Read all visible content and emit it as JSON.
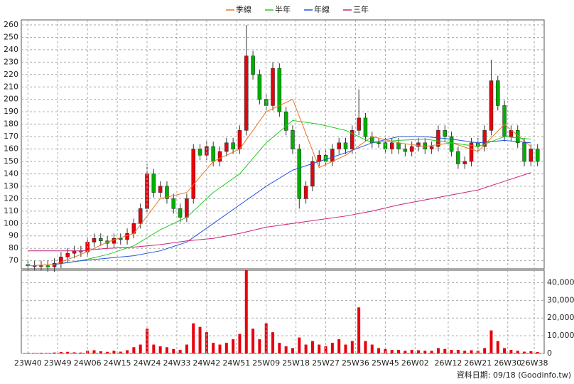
{
  "chart_data": [
    {
      "type": "candlestick",
      "x": [
        0,
        2,
        4,
        6,
        8,
        10,
        12,
        14,
        16,
        18,
        20,
        22,
        24,
        26,
        28,
        30,
        32,
        34,
        36,
        38,
        40,
        42,
        44,
        46,
        48,
        50,
        52,
        54,
        56,
        58,
        60,
        62,
        64,
        66,
        68,
        70,
        72,
        74,
        76,
        78,
        80,
        82,
        84,
        86,
        88,
        90,
        92,
        94,
        96,
        98,
        100,
        102,
        104,
        106,
        108,
        110,
        112,
        114,
        116,
        118,
        120,
        122,
        124,
        126,
        128,
        130,
        132,
        134,
        136,
        138,
        140,
        142,
        144,
        146,
        148,
        150,
        152,
        154
      ],
      "open": [
        67,
        66,
        66,
        66,
        65,
        68,
        73,
        76,
        78,
        77,
        85,
        88,
        86,
        84,
        88,
        87,
        92,
        100,
        112,
        140,
        125,
        130,
        120,
        112,
        105,
        120,
        160,
        155,
        162,
        150,
        158,
        165,
        160,
        175,
        235,
        220,
        200,
        195,
        225,
        190,
        175,
        160,
        120,
        130,
        150,
        155,
        150,
        160,
        165,
        160,
        175,
        185,
        170,
        165,
        165,
        160,
        165,
        160,
        158,
        162,
        165,
        160,
        162,
        175,
        170,
        158,
        148,
        150,
        165,
        162,
        175,
        215,
        195,
        170,
        175,
        165,
        150,
        160
      ],
      "high": [
        70,
        70,
        70,
        70,
        72,
        77,
        80,
        82,
        82,
        89,
        92,
        92,
        90,
        92,
        92,
        96,
        104,
        116,
        148,
        144,
        134,
        134,
        124,
        116,
        124,
        164,
        164,
        166,
        166,
        162,
        169,
        169,
        179,
        260,
        239,
        224,
        204,
        230,
        229,
        194,
        179,
        164,
        134,
        154,
        159,
        159,
        164,
        169,
        169,
        179,
        208,
        189,
        174,
        169,
        169,
        169,
        169,
        164,
        166,
        169,
        169,
        166,
        179,
        179,
        174,
        162,
        154,
        169,
        169,
        179,
        232,
        219,
        199,
        179,
        179,
        169,
        164,
        164
      ],
      "low": [
        62,
        62,
        62,
        61,
        61,
        64,
        69,
        72,
        73,
        73,
        81,
        82,
        80,
        80,
        83,
        83,
        88,
        96,
        108,
        121,
        121,
        116,
        108,
        101,
        101,
        116,
        151,
        151,
        146,
        146,
        154,
        156,
        156,
        171,
        216,
        196,
        191,
        191,
        186,
        171,
        156,
        112,
        116,
        126,
        146,
        146,
        146,
        156,
        156,
        156,
        171,
        166,
        161,
        161,
        156,
        156,
        156,
        154,
        154,
        158,
        156,
        156,
        158,
        166,
        154,
        144,
        144,
        146,
        158,
        158,
        171,
        191,
        166,
        166,
        161,
        146,
        146,
        146
      ],
      "close": [
        66,
        66,
        66,
        65,
        68,
        73,
        76,
        78,
        77,
        85,
        88,
        86,
        84,
        88,
        87,
        92,
        100,
        112,
        140,
        125,
        130,
        120,
        112,
        105,
        120,
        160,
        155,
        162,
        150,
        158,
        165,
        160,
        175,
        235,
        220,
        200,
        195,
        225,
        190,
        175,
        160,
        120,
        130,
        150,
        155,
        150,
        160,
        165,
        160,
        175,
        185,
        170,
        165,
        165,
        160,
        165,
        160,
        158,
        162,
        165,
        160,
        162,
        175,
        170,
        158,
        148,
        150,
        165,
        162,
        175,
        215,
        195,
        170,
        175,
        165,
        150,
        160,
        150
      ],
      "up_color": "#e8000b",
      "down_color": "#00b000",
      "series": [
        {
          "name": "季線",
          "color": "#e87722",
          "x": [
            0,
            8,
            16,
            24,
            32,
            40,
            48,
            56,
            64,
            72,
            80,
            88,
            96,
            104,
            112,
            120,
            128,
            136,
            144,
            152
          ],
          "values": [
            66,
            67,
            75,
            85,
            92,
            120,
            125,
            150,
            160,
            190,
            200,
            145,
            155,
            170,
            165,
            162,
            165,
            158,
            180,
            162
          ]
        },
        {
          "name": "半年",
          "color": "#22cc22",
          "x": [
            0,
            8,
            16,
            24,
            32,
            40,
            48,
            56,
            64,
            72,
            80,
            88,
            96,
            104,
            112,
            120,
            128,
            136,
            144,
            152
          ],
          "values": [
            null,
            67,
            70,
            75,
            82,
            95,
            105,
            125,
            140,
            165,
            183,
            180,
            175,
            165,
            167,
            168,
            165,
            162,
            170,
            168
          ]
        },
        {
          "name": "年線",
          "color": "#2255dd",
          "x": [
            0,
            8,
            16,
            24,
            32,
            40,
            48,
            56,
            64,
            72,
            80,
            88,
            96,
            104,
            112,
            120,
            128,
            136,
            144,
            152
          ],
          "values": [
            null,
            67,
            70,
            72,
            74,
            78,
            85,
            100,
            115,
            130,
            143,
            150,
            157,
            165,
            170,
            170,
            168,
            165,
            167,
            165
          ]
        },
        {
          "name": "三年",
          "color": "#cc2277",
          "x": [
            0,
            8,
            16,
            24,
            32,
            40,
            48,
            56,
            64,
            72,
            80,
            88,
            96,
            104,
            112,
            120,
            128,
            136,
            144,
            152
          ],
          "values": [
            78,
            78,
            78,
            80,
            81,
            83,
            86,
            88,
            92,
            97,
            100,
            103,
            106,
            110,
            115,
            119,
            123,
            127,
            134,
            141
          ]
        }
      ],
      "xlim": [
        -2,
        156
      ],
      "ylim": [
        63.5,
        264
      ],
      "yticks": [
        70,
        80,
        90,
        100,
        110,
        120,
        130,
        140,
        150,
        160,
        170,
        180,
        190,
        200,
        210,
        220,
        230,
        240,
        250,
        260
      ],
      "grid": true,
      "legend": "top"
    },
    {
      "type": "bar",
      "x": [
        0,
        2,
        4,
        6,
        8,
        10,
        12,
        14,
        16,
        18,
        20,
        22,
        24,
        26,
        28,
        30,
        32,
        34,
        36,
        38,
        40,
        42,
        44,
        46,
        48,
        50,
        52,
        54,
        56,
        58,
        60,
        62,
        64,
        66,
        68,
        70,
        72,
        74,
        76,
        78,
        80,
        82,
        84,
        86,
        88,
        90,
        92,
        94,
        96,
        98,
        100,
        102,
        104,
        106,
        108,
        110,
        112,
        114,
        116,
        118,
        120,
        122,
        124,
        126,
        128,
        130,
        132,
        134,
        136,
        138,
        140,
        142,
        144,
        146,
        148,
        150,
        152,
        154
      ],
      "values": [
        300,
        200,
        300,
        200,
        500,
        800,
        900,
        600,
        500,
        1500,
        1800,
        1200,
        900,
        1500,
        1000,
        1800,
        3500,
        5000,
        14000,
        5000,
        4000,
        3500,
        2500,
        2000,
        5000,
        17000,
        15000,
        12000,
        6000,
        5000,
        6000,
        8000,
        11000,
        47000,
        14000,
        8000,
        17000,
        12000,
        6000,
        4000,
        3000,
        9000,
        5000,
        7000,
        5000,
        4000,
        6000,
        8000,
        5000,
        7000,
        26000,
        7000,
        5000,
        3000,
        2500,
        2000,
        2000,
        1500,
        2000,
        1800,
        1500,
        1500,
        3000,
        2500,
        2000,
        2000,
        1500,
        1800,
        1500,
        3000,
        13000,
        7000,
        3000,
        2000,
        1500,
        1000,
        1200,
        800
      ],
      "color": "#e8000b",
      "xlim": [
        -2,
        156
      ],
      "ylim": [
        0,
        47000
      ],
      "yticks": [
        0,
        {
          "value": 10000,
          "label": "10,000"
        },
        {
          "value": 20000,
          "label": "20,000"
        },
        {
          "value": 30000,
          "label": "30,000"
        },
        {
          "value": 40000,
          "label": "40,000"
        }
      ],
      "xticks": [
        {
          "value": 0,
          "label": "23W40"
        },
        {
          "value": 9,
          "label": "23W49"
        },
        {
          "value": 18,
          "label": "24W06"
        },
        {
          "value": 27,
          "label": "24W15"
        },
        {
          "value": 36,
          "label": "24W24"
        },
        {
          "value": 45,
          "label": "24W33"
        },
        {
          "value": 54,
          "label": "24W42"
        },
        {
          "value": 63,
          "label": "24W51"
        },
        {
          "value": 72,
          "label": "25W09"
        },
        {
          "value": 81,
          "label": "25W18"
        },
        {
          "value": 90,
          "label": "25W27"
        },
        {
          "value": 99,
          "label": "25W36"
        },
        {
          "value": 108,
          "label": "25W45"
        },
        {
          "value": 117,
          "label": "26W02"
        },
        {
          "value": 127,
          "label": "26W12"
        },
        {
          "value": 136,
          "label": "26W21"
        },
        {
          "value": 145,
          "label": "26W30"
        },
        {
          "value": 153,
          "label": "26W38"
        }
      ],
      "grid": true
    }
  ],
  "source": "資料日期: 09/18 (Goodinfo.tw)"
}
